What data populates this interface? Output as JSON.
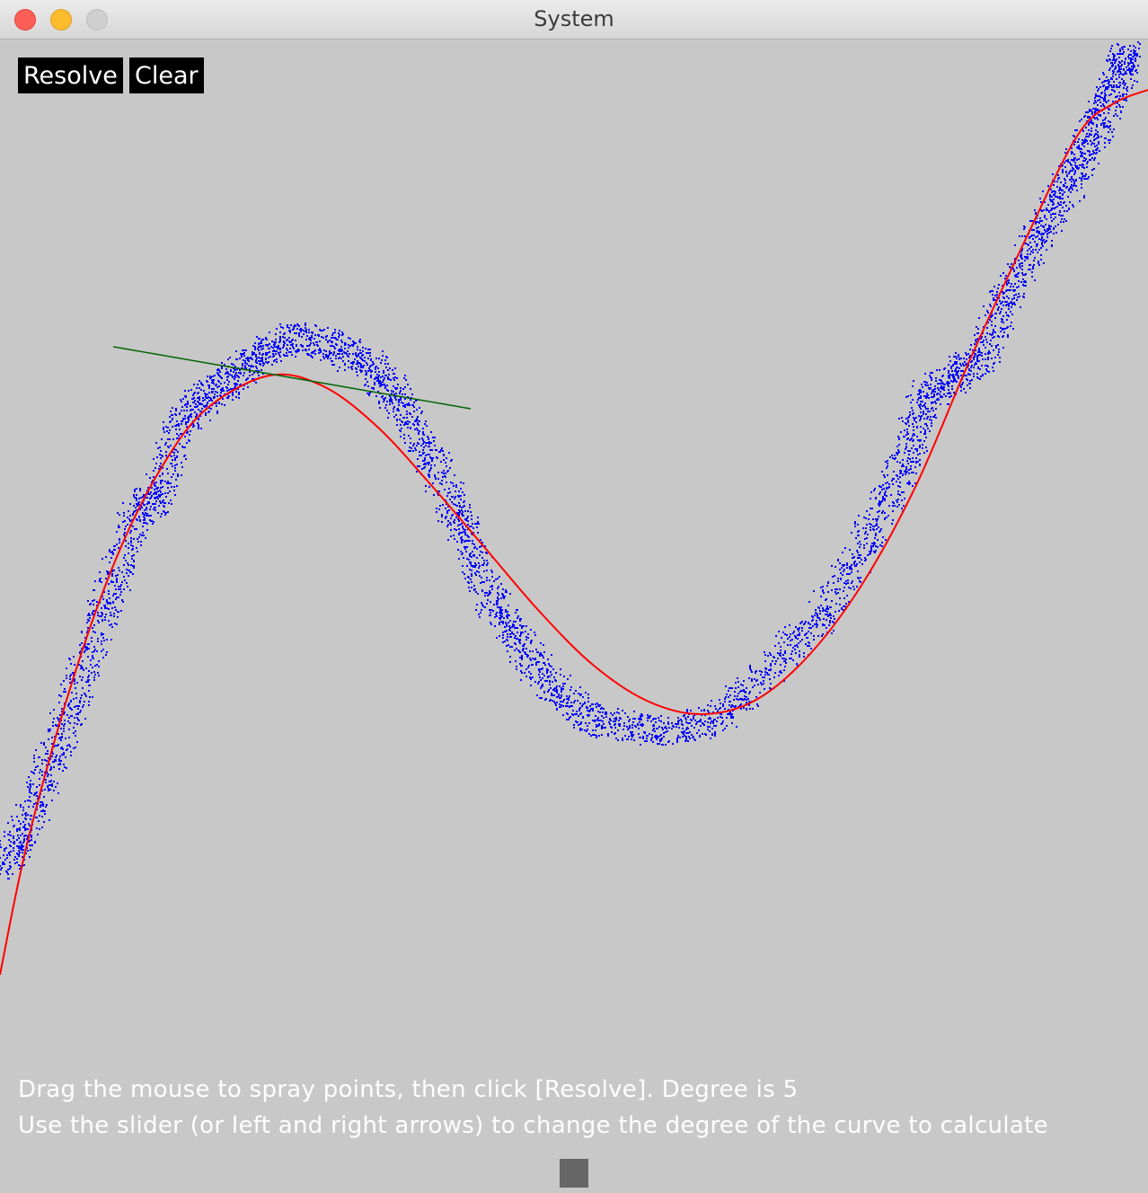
{
  "window": {
    "title": "System"
  },
  "toolbar": {
    "resolve_label": "Resolve",
    "clear_label": "Clear"
  },
  "info": {
    "line1": "Drag the mouse to spray points, then click [Resolve]. Degree is 5",
    "line2": "Use the slider (or left and right arrows) to change the degree of the curve to calculate"
  },
  "degree": 5,
  "slider": {
    "value": 5,
    "min": 1,
    "max": 9
  },
  "colors": {
    "background": "#c8c8c8",
    "points": "#0000ff",
    "curve": "#ff0000",
    "tangent": "#006400",
    "button_bg": "#000000",
    "button_text": "#ffffff"
  }
}
